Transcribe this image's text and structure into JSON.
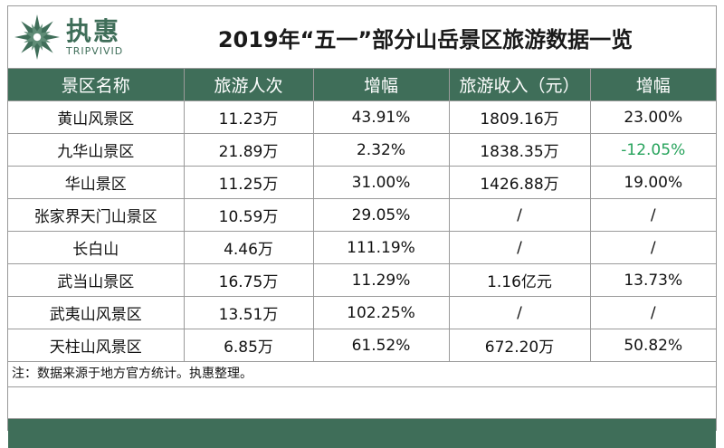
{
  "logo": {
    "cn": "执惠",
    "en": "TRIPVIVID",
    "color": "#3f6e59"
  },
  "title": "2019年“五一”部分山岳景区旅游数据一览",
  "table": {
    "headers": [
      "景区名称",
      "旅游人次",
      "增幅",
      "旅游收入（元）",
      "增幅"
    ],
    "rows": [
      [
        "黄山风景区",
        "11.23万",
        "43.91%",
        "1809.16万",
        "23.00%"
      ],
      [
        "九华山景区",
        "21.89万",
        "2.32%",
        "1838.35万",
        "-12.05%"
      ],
      [
        "华山景区",
        "11.25万",
        "31.00%",
        "1426.88万",
        "19.00%"
      ],
      [
        "张家界天门山景区",
        "10.59万",
        "29.05%",
        "/",
        "/"
      ],
      [
        "长白山",
        "4.46万",
        "111.19%",
        "/",
        "/"
      ],
      [
        "武当山景区",
        "16.75万",
        "11.29%",
        "1.16亿元",
        "13.73%"
      ],
      [
        "武夷山风景区",
        "13.51万",
        "102.25%",
        "/",
        "/"
      ],
      [
        "天柱山风景区",
        "6.85万",
        "61.52%",
        "672.20万",
        "50.82%"
      ]
    ]
  },
  "note": "注：数据来源于地方官方统计。执惠整理。",
  "colors": {
    "header_bg": "#3f6e59",
    "negative": "#27a35c"
  }
}
